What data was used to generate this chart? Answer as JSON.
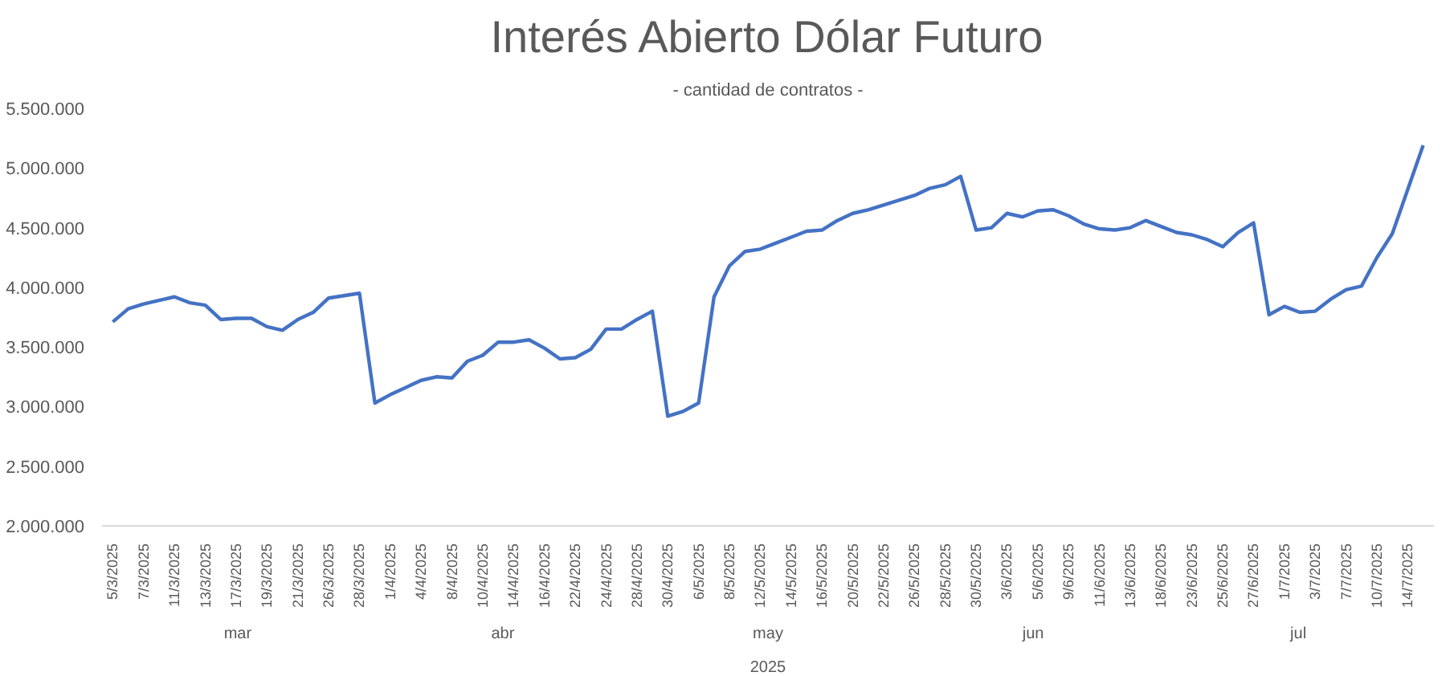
{
  "chart_data": {
    "type": "line",
    "title": "Interés Abierto Dólar Futuro",
    "subtitle": "- cantidad de contratos -",
    "categories": [
      "5/3/2025",
      null,
      "7/3/2025",
      null,
      "11/3/2025",
      null,
      "13/3/2025",
      null,
      "17/3/2025",
      null,
      "19/3/2025",
      null,
      "21/3/2025",
      null,
      "26/3/2025",
      null,
      "28/3/2025",
      null,
      "1/4/2025",
      null,
      "4/4/2025",
      null,
      "8/4/2025",
      null,
      "10/4/2025",
      null,
      "14/4/2025",
      null,
      "16/4/2025",
      null,
      "22/4/2025",
      null,
      "24/4/2025",
      null,
      "28/4/2025",
      null,
      "30/4/2025",
      null,
      "6/5/2025",
      null,
      "8/5/2025",
      null,
      "12/5/2025",
      null,
      "14/5/2025",
      null,
      "16/5/2025",
      null,
      "20/5/2025",
      null,
      "22/5/2025",
      null,
      "26/5/2025",
      null,
      "28/5/2025",
      null,
      "30/5/2025",
      null,
      "3/6/2025",
      null,
      "5/6/2025",
      null,
      "9/6/2025",
      null,
      "11/6/2025",
      null,
      "13/6/2025",
      null,
      "18/6/2025",
      null,
      "23/6/2025",
      null,
      "25/6/2025",
      null,
      "27/6/2025",
      null,
      "1/7/2025",
      null,
      "3/7/2025",
      null,
      "7/7/2025",
      null,
      "10/7/2025",
      null,
      "14/7/2025",
      null
    ],
    "series": [
      {
        "color": "#4472c4",
        "values": [
          3710000,
          3820000,
          3860000,
          3890000,
          3920000,
          3870000,
          3850000,
          3730000,
          3740000,
          3740000,
          3670000,
          3640000,
          3730000,
          3790000,
          3910000,
          3930000,
          3950000,
          3030000,
          3100000,
          3160000,
          3220000,
          3250000,
          3240000,
          3380000,
          3430000,
          3540000,
          3540000,
          3560000,
          3490000,
          3400000,
          3410000,
          3480000,
          3650000,
          3650000,
          3730000,
          3800000,
          2920000,
          2960000,
          3030000,
          3920000,
          4180000,
          4300000,
          4320000,
          4370000,
          4420000,
          4470000,
          4480000,
          4560000,
          4620000,
          4650000,
          4690000,
          4730000,
          4770000,
          4830000,
          4860000,
          4930000,
          4480000,
          4500000,
          4620000,
          4590000,
          4640000,
          4650000,
          4600000,
          4530000,
          4490000,
          4480000,
          4500000,
          4560000,
          4510000,
          4460000,
          4440000,
          4400000,
          4340000,
          4460000,
          4540000,
          3770000,
          3840000,
          3790000,
          3800000,
          3900000,
          3980000,
          4010000,
          4250000,
          4450000,
          4820000,
          5190000
        ]
      }
    ],
    "ylim": [
      2000000,
      5500000
    ],
    "yticks": [
      {
        "value": 2000000,
        "label": "2.000.000"
      },
      {
        "value": 2500000,
        "label": "2.500.000"
      },
      {
        "value": 3000000,
        "label": "3.000.000"
      },
      {
        "value": 3500000,
        "label": "3.500.000"
      },
      {
        "value": 4000000,
        "label": "4.000.000"
      },
      {
        "value": 4500000,
        "label": "4.500.000"
      },
      {
        "value": 5000000,
        "label": "5.000.000"
      },
      {
        "value": 5500000,
        "label": "5.500.000"
      }
    ],
    "grid": false,
    "marker": "none",
    "line_style": "solid",
    "annotations": [
      "mar",
      "abr",
      "may",
      "jun",
      "jul",
      "2025"
    ]
  }
}
